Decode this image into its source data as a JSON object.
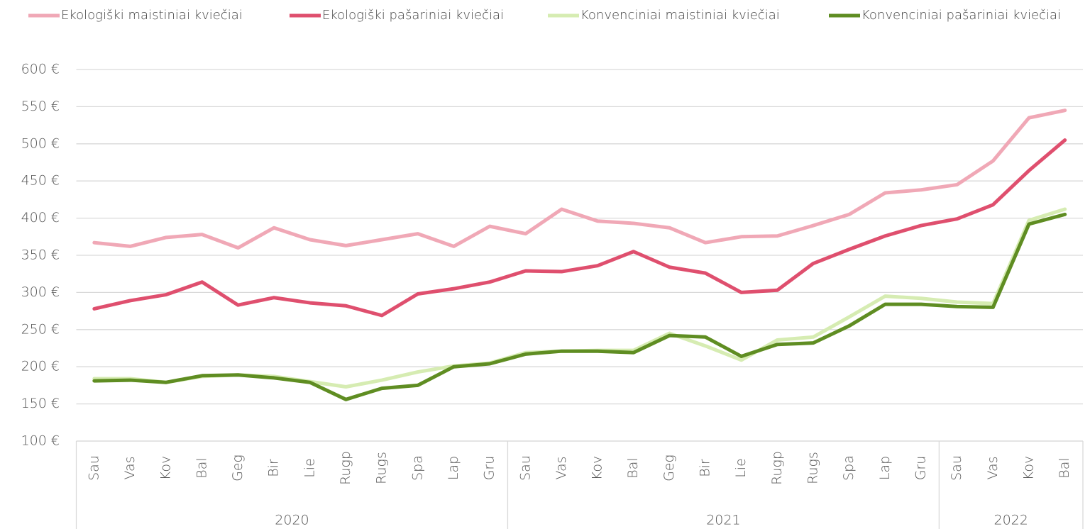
{
  "chart_data": {
    "type": "line",
    "categories": [
      "Sau",
      "Vas",
      "Kov",
      "Bal",
      "Geg",
      "Bir",
      "Lie",
      "Rugp",
      "Rugs",
      "Spa",
      "Lap",
      "Gru",
      "Sau",
      "Vas",
      "Kov",
      "Bal",
      "Geg",
      "Bir",
      "Lie",
      "Rugp",
      "Rugs",
      "Spa",
      "Lap",
      "Gru",
      "Sau",
      "Vas",
      "Kov",
      "Bal"
    ],
    "groups": [
      {
        "label": "2020",
        "size": 12
      },
      {
        "label": "2021",
        "size": 12
      },
      {
        "label": "2022",
        "size": 4
      }
    ],
    "series": [
      {
        "name": "Ekologiški maistiniai kviečiai",
        "color": "#f0a8b6",
        "values": [
          367,
          362,
          374,
          378,
          360,
          387,
          371,
          363,
          371,
          379,
          362,
          389,
          379,
          412,
          396,
          393,
          387,
          367,
          375,
          376,
          390,
          405,
          434,
          438,
          445,
          477,
          535,
          545
        ]
      },
      {
        "name": "Ekologiški pašariniai kviečiai",
        "color": "#df4f6e",
        "values": [
          278,
          289,
          297,
          314,
          283,
          293,
          286,
          282,
          269,
          298,
          305,
          314,
          329,
          328,
          336,
          355,
          334,
          326,
          300,
          303,
          339,
          358,
          376,
          390,
          399,
          418,
          464,
          505
        ]
      },
      {
        "name": "Konvenciniai maistiniai kviečiai",
        "color": "#d6ecb2",
        "values": [
          184,
          184,
          179,
          187,
          189,
          187,
          180,
          173,
          182,
          193,
          201,
          205,
          219,
          221,
          222,
          222,
          245,
          228,
          209,
          236,
          240,
          267,
          295,
          292,
          287,
          285,
          397,
          412
        ]
      },
      {
        "name": "Konvenciniai pašariniai kviečiai",
        "color": "#5f8d22",
        "values": [
          181,
          182,
          179,
          188,
          189,
          185,
          179,
          156,
          171,
          175,
          200,
          204,
          217,
          221,
          221,
          219,
          242,
          240,
          214,
          230,
          232,
          255,
          284,
          284,
          281,
          280,
          392,
          405
        ]
      }
    ],
    "ylim": [
      100,
      600
    ],
    "yticks": [
      {
        "value": 100,
        "label": "100 €"
      },
      {
        "value": 150,
        "label": "150 €"
      },
      {
        "value": 200,
        "label": "200 €"
      },
      {
        "value": 250,
        "label": "250 €"
      },
      {
        "value": 300,
        "label": "300 €"
      },
      {
        "value": 350,
        "label": "350 €"
      },
      {
        "value": 400,
        "label": "400 €"
      },
      {
        "value": 450,
        "label": "450 €"
      },
      {
        "value": 500,
        "label": "500 €"
      },
      {
        "value": 550,
        "label": "550 €"
      },
      {
        "value": 600,
        "label": "600 €"
      }
    ],
    "grid": true,
    "legend": "top"
  }
}
